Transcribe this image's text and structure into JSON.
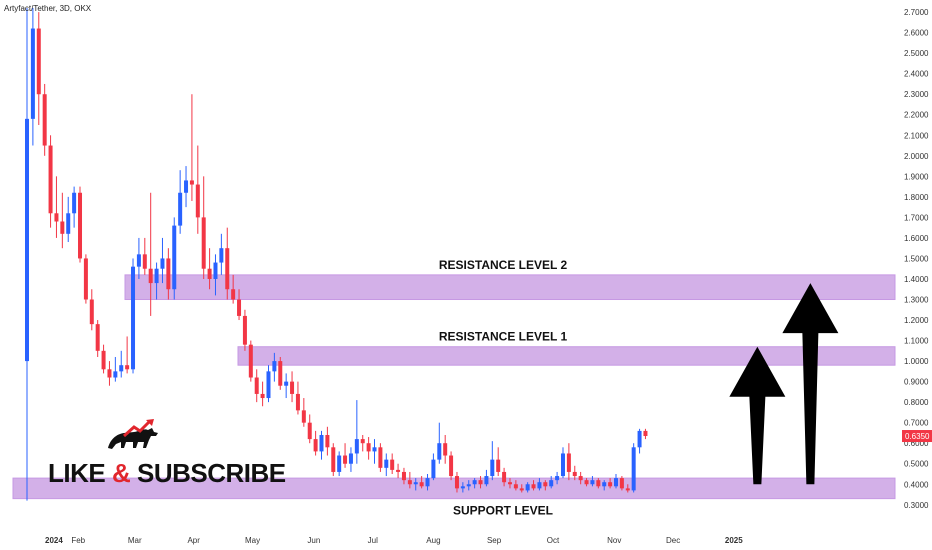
{
  "header": {
    "title": "Artyfact/Tether, 3D, OKX"
  },
  "brand": {
    "text_left": "LIKE",
    "amp": "&",
    "text_right": "SUBSCRIBE",
    "logo": "bull-icon"
  },
  "colors": {
    "up": "#2962ff",
    "down": "#f23645",
    "zone": "#cfa8e6",
    "zone_border": "#c08ee0",
    "arrow": "#000000",
    "price_tag": "#f23645",
    "axis_text": "#333333"
  },
  "chart_data": {
    "type": "candlestick",
    "title": "Artyfact/Tether, 3D, OKX",
    "xlabel": "",
    "ylabel": "",
    "x_ticks": [
      {
        "label": "2024",
        "idx": 0
      },
      {
        "label": "Feb",
        "idx": 8.7
      },
      {
        "label": "Mar",
        "idx": 18.3
      },
      {
        "label": "Apr",
        "idx": 28.3
      },
      {
        "label": "May",
        "idx": 38.3
      },
      {
        "label": "Jun",
        "idx": 48.7
      },
      {
        "label": "Jul",
        "idx": 58.7
      },
      {
        "label": "Aug",
        "idx": 69
      },
      {
        "label": "Sep",
        "idx": 79.3
      },
      {
        "label": "Oct",
        "idx": 89.3
      },
      {
        "label": "Nov",
        "idx": 99.7
      },
      {
        "label": "Dec",
        "idx": 109.7
      },
      {
        "label": "2025",
        "idx": 120
      }
    ],
    "y_ticks": [
      "2.7000",
      "2.6000",
      "2.5000",
      "2.4000",
      "2.3000",
      "2.2000",
      "2.1000",
      "2.0000",
      "1.9000",
      "1.8000",
      "1.7000",
      "1.6000",
      "1.5000",
      "1.4000",
      "1.3000",
      "1.2000",
      "1.1000",
      "1.0000",
      "0.9000",
      "0.8000",
      "0.7000",
      "0.6000",
      "0.5000",
      "0.4000",
      "0.3000"
    ],
    "ylim": [
      0.26,
      2.72
    ],
    "last_price": "0.6350",
    "last_price_value": 0.635,
    "candles": [
      [
        1.0,
        2.8,
        0.32,
        2.18
      ],
      [
        2.18,
        2.72,
        2.05,
        2.62
      ],
      [
        2.62,
        2.7,
        2.15,
        2.3
      ],
      [
        2.3,
        2.35,
        2.0,
        2.05
      ],
      [
        2.05,
        2.1,
        1.65,
        1.72
      ],
      [
        1.72,
        1.9,
        1.6,
        1.68
      ],
      [
        1.68,
        1.82,
        1.55,
        1.62
      ],
      [
        1.62,
        1.8,
        1.58,
        1.72
      ],
      [
        1.72,
        1.85,
        1.65,
        1.82
      ],
      [
        1.82,
        1.85,
        1.48,
        1.5
      ],
      [
        1.5,
        1.52,
        1.28,
        1.3
      ],
      [
        1.3,
        1.35,
        1.15,
        1.18
      ],
      [
        1.18,
        1.2,
        1.02,
        1.05
      ],
      [
        1.05,
        1.08,
        0.94,
        0.96
      ],
      [
        0.96,
        1.0,
        0.88,
        0.92
      ],
      [
        0.92,
        1.02,
        0.9,
        0.95
      ],
      [
        0.95,
        1.05,
        0.92,
        0.98
      ],
      [
        0.98,
        1.12,
        0.94,
        0.96
      ],
      [
        0.96,
        1.5,
        0.94,
        1.46
      ],
      [
        1.46,
        1.6,
        1.4,
        1.52
      ],
      [
        1.52,
        1.6,
        1.42,
        1.45
      ],
      [
        1.45,
        1.82,
        1.22,
        1.38
      ],
      [
        1.38,
        1.48,
        1.3,
        1.45
      ],
      [
        1.45,
        1.6,
        1.38,
        1.5
      ],
      [
        1.5,
        1.55,
        1.3,
        1.35
      ],
      [
        1.35,
        1.7,
        1.3,
        1.66
      ],
      [
        1.66,
        1.93,
        1.62,
        1.82
      ],
      [
        1.82,
        1.95,
        1.75,
        1.88
      ],
      [
        1.88,
        2.3,
        1.78,
        1.86
      ],
      [
        1.86,
        2.05,
        1.62,
        1.7
      ],
      [
        1.7,
        1.9,
        1.4,
        1.45
      ],
      [
        1.45,
        1.55,
        1.35,
        1.4
      ],
      [
        1.4,
        1.52,
        1.32,
        1.48
      ],
      [
        1.48,
        1.62,
        1.42,
        1.55
      ],
      [
        1.55,
        1.65,
        1.3,
        1.35
      ],
      [
        1.35,
        1.42,
        1.28,
        1.3
      ],
      [
        1.3,
        1.35,
        1.2,
        1.22
      ],
      [
        1.22,
        1.25,
        1.05,
        1.08
      ],
      [
        1.08,
        1.1,
        0.9,
        0.92
      ],
      [
        0.92,
        0.96,
        0.8,
        0.84
      ],
      [
        0.84,
        0.9,
        0.78,
        0.82
      ],
      [
        0.82,
        0.98,
        0.8,
        0.95
      ],
      [
        0.95,
        1.04,
        0.9,
        1.0
      ],
      [
        1.0,
        1.02,
        0.86,
        0.88
      ],
      [
        0.88,
        0.94,
        0.82,
        0.9
      ],
      [
        0.9,
        0.95,
        0.8,
        0.84
      ],
      [
        0.84,
        0.9,
        0.74,
        0.76
      ],
      [
        0.76,
        0.82,
        0.68,
        0.7
      ],
      [
        0.7,
        0.74,
        0.6,
        0.62
      ],
      [
        0.62,
        0.66,
        0.54,
        0.56
      ],
      [
        0.56,
        0.66,
        0.52,
        0.64
      ],
      [
        0.64,
        0.68,
        0.54,
        0.58
      ],
      [
        0.58,
        0.6,
        0.44,
        0.46
      ],
      [
        0.46,
        0.56,
        0.44,
        0.54
      ],
      [
        0.54,
        0.6,
        0.48,
        0.5
      ],
      [
        0.5,
        0.58,
        0.46,
        0.55
      ],
      [
        0.55,
        0.81,
        0.5,
        0.62
      ],
      [
        0.62,
        0.64,
        0.56,
        0.6
      ],
      [
        0.6,
        0.63,
        0.52,
        0.56
      ],
      [
        0.56,
        0.62,
        0.5,
        0.58
      ],
      [
        0.58,
        0.6,
        0.46,
        0.48
      ],
      [
        0.48,
        0.55,
        0.44,
        0.52
      ],
      [
        0.52,
        0.55,
        0.45,
        0.47
      ],
      [
        0.47,
        0.5,
        0.43,
        0.46
      ],
      [
        0.46,
        0.48,
        0.4,
        0.42
      ],
      [
        0.42,
        0.46,
        0.38,
        0.4
      ],
      [
        0.4,
        0.43,
        0.37,
        0.41
      ],
      [
        0.41,
        0.44,
        0.38,
        0.39
      ],
      [
        0.39,
        0.45,
        0.37,
        0.43
      ],
      [
        0.43,
        0.55,
        0.42,
        0.52
      ],
      [
        0.52,
        0.7,
        0.5,
        0.6
      ],
      [
        0.6,
        0.64,
        0.5,
        0.54
      ],
      [
        0.54,
        0.56,
        0.42,
        0.44
      ],
      [
        0.44,
        0.46,
        0.36,
        0.38
      ],
      [
        0.38,
        0.41,
        0.36,
        0.39
      ],
      [
        0.39,
        0.42,
        0.37,
        0.4
      ],
      [
        0.4,
        0.43,
        0.38,
        0.42
      ],
      [
        0.42,
        0.44,
        0.38,
        0.4
      ],
      [
        0.4,
        0.47,
        0.39,
        0.44
      ],
      [
        0.44,
        0.61,
        0.42,
        0.52
      ],
      [
        0.52,
        0.58,
        0.44,
        0.46
      ],
      [
        0.46,
        0.48,
        0.39,
        0.41
      ],
      [
        0.41,
        0.43,
        0.38,
        0.4
      ],
      [
        0.4,
        0.42,
        0.37,
        0.38
      ],
      [
        0.38,
        0.4,
        0.36,
        0.37
      ],
      [
        0.37,
        0.41,
        0.36,
        0.4
      ],
      [
        0.4,
        0.42,
        0.37,
        0.38
      ],
      [
        0.38,
        0.43,
        0.37,
        0.41
      ],
      [
        0.41,
        0.42,
        0.37,
        0.39
      ],
      [
        0.39,
        0.44,
        0.38,
        0.42
      ],
      [
        0.42,
        0.46,
        0.4,
        0.44
      ],
      [
        0.44,
        0.58,
        0.43,
        0.55
      ],
      [
        0.55,
        0.6,
        0.42,
        0.46
      ],
      [
        0.46,
        0.49,
        0.42,
        0.44
      ],
      [
        0.44,
        0.46,
        0.4,
        0.42
      ],
      [
        0.42,
        0.43,
        0.39,
        0.4
      ],
      [
        0.4,
        0.44,
        0.39,
        0.42
      ],
      [
        0.42,
        0.43,
        0.38,
        0.39
      ],
      [
        0.39,
        0.42,
        0.37,
        0.41
      ],
      [
        0.41,
        0.43,
        0.38,
        0.39
      ],
      [
        0.39,
        0.45,
        0.38,
        0.43
      ],
      [
        0.43,
        0.44,
        0.37,
        0.38
      ],
      [
        0.38,
        0.4,
        0.36,
        0.37
      ],
      [
        0.37,
        0.6,
        0.36,
        0.58
      ],
      [
        0.58,
        0.67,
        0.55,
        0.66
      ],
      [
        0.66,
        0.67,
        0.62,
        0.635
      ]
    ],
    "zones": [
      {
        "label": "RESISTANCE LEVEL 2",
        "y1": 1.3,
        "y2": 1.42,
        "label_position": "above"
      },
      {
        "label": "RESISTANCE LEVEL 1",
        "y1": 0.98,
        "y2": 1.07,
        "label_position": "above"
      },
      {
        "label": "SUPPORT LEVEL",
        "y1": 0.33,
        "y2": 0.43,
        "label_position": "below"
      }
    ],
    "arrows": [
      {
        "from_idx": 124,
        "from_y": 0.4,
        "to_y": 1.07
      },
      {
        "from_idx": 133,
        "from_y": 0.4,
        "to_y": 1.38
      }
    ],
    "legend": "none",
    "grid": false
  }
}
